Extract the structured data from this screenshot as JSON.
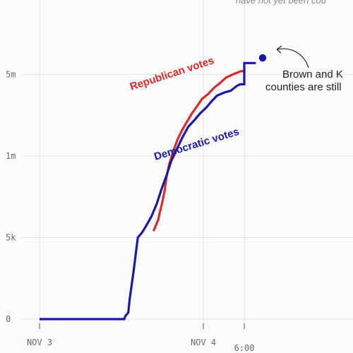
{
  "chart_data": {
    "type": "line",
    "title": "",
    "xlabel": "",
    "ylabel": "",
    "x_ticks": [
      {
        "label": "NOV 3",
        "hour": 0
      },
      {
        "label": "NOV 4",
        "hour": 24
      },
      {
        "label": "6:00",
        "hour": 30
      }
    ],
    "y_ticks": [
      {
        "label": "0",
        "value": 0
      },
      {
        "label": "5k",
        "value": 5000
      },
      {
        "label": "1m",
        "value": 10000
      },
      {
        "label": "5m",
        "value": 15000
      }
    ],
    "xlim": [
      0,
      48
    ],
    "ylim": [
      0,
      20000
    ],
    "series": [
      {
        "name": "Republican votes",
        "color": "#d92b2b",
        "points": [
          [
            16.7,
            5400
          ],
          [
            17.0,
            5700
          ],
          [
            17.4,
            6100
          ],
          [
            17.6,
            6500
          ],
          [
            17.9,
            7000
          ],
          [
            18.3,
            7800
          ],
          [
            18.6,
            8700
          ],
          [
            19.0,
            9500
          ],
          [
            19.6,
            10300
          ],
          [
            20.2,
            11000
          ],
          [
            20.9,
            11600
          ],
          [
            21.6,
            12100
          ],
          [
            22.3,
            12600
          ],
          [
            23.0,
            13000
          ],
          [
            23.8,
            13500
          ],
          [
            24.7,
            13800
          ],
          [
            25.6,
            14200
          ],
          [
            26.5,
            14500
          ],
          [
            27.3,
            14800
          ],
          [
            28.3,
            15000
          ],
          [
            29.5,
            15200
          ],
          [
            30.0,
            15200
          ]
        ]
      },
      {
        "name": "Democratic votes",
        "color": "#1a1aa6",
        "points": [
          [
            0.0,
            0
          ],
          [
            12.4,
            0
          ],
          [
            12.6,
            200
          ],
          [
            13.0,
            400
          ],
          [
            13.2,
            1200
          ],
          [
            13.5,
            2100
          ],
          [
            13.8,
            3000
          ],
          [
            14.1,
            4000
          ],
          [
            14.4,
            5000
          ],
          [
            15.0,
            5300
          ],
          [
            15.6,
            5700
          ],
          [
            16.4,
            6300
          ],
          [
            17.2,
            7100
          ],
          [
            17.9,
            8000
          ],
          [
            18.6,
            8800
          ],
          [
            19.3,
            9700
          ],
          [
            20.2,
            10500
          ],
          [
            21.0,
            11200
          ],
          [
            21.8,
            11800
          ],
          [
            22.7,
            12200
          ],
          [
            23.5,
            12600
          ],
          [
            24.5,
            13000
          ],
          [
            25.3,
            13400
          ],
          [
            26.0,
            13700
          ],
          [
            27.1,
            13900
          ],
          [
            28.0,
            14000
          ],
          [
            28.9,
            14300
          ],
          [
            29.4,
            14400
          ],
          [
            30.0,
            14400
          ],
          [
            30.0,
            15700
          ],
          [
            31.7,
            15700
          ]
        ]
      }
    ],
    "annotations": {
      "callout": [
        "Brown and K",
        "counties are still"
      ],
      "top_note": "have not yet been cou"
    }
  }
}
